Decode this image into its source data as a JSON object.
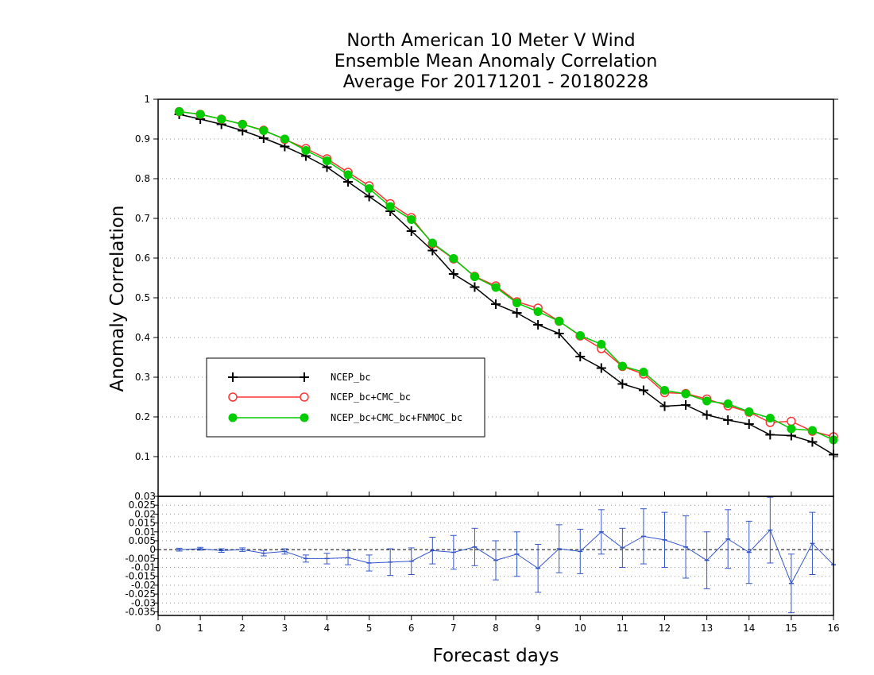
{
  "chart_data": [
    {
      "type": "line",
      "title_lines": [
        "North American 10 Meter V Wind",
        "Ensemble Mean Anomaly Correlation",
        "Average For 20171201 - 20180228"
      ],
      "xlabel": "Forecast days",
      "ylabel": "Anomaly Correlation",
      "xlim": [
        0,
        16
      ],
      "ylim": [
        0,
        1
      ],
      "x_ticks": [
        "0",
        "1",
        "2",
        "3",
        "4",
        "5",
        "6",
        "7",
        "8",
        "9",
        "10",
        "11",
        "12",
        "13",
        "14",
        "15",
        "16"
      ],
      "y_ticks": [
        "0.1",
        "0.2",
        "0.3",
        "0.4",
        "0.5",
        "0.6",
        "0.7",
        "0.8",
        "0.9",
        "1"
      ],
      "grid": "dotted horizontal",
      "legend_position": "lower-left",
      "x": [
        0.5,
        1,
        1.5,
        2,
        2.5,
        3,
        3.5,
        4,
        4.5,
        5,
        5.5,
        6,
        6.5,
        7,
        7.5,
        8,
        8.5,
        9,
        9.5,
        10,
        10.5,
        11,
        11.5,
        12,
        12.5,
        13,
        13.5,
        14,
        14.5,
        15,
        15.5,
        16
      ],
      "series": [
        {
          "name": "NCEP_bc",
          "color": "#000000",
          "marker": "plus",
          "values": [
            0.962,
            0.95,
            0.937,
            0.921,
            0.902,
            0.881,
            0.857,
            0.829,
            0.792,
            0.755,
            0.718,
            0.668,
            0.619,
            0.56,
            0.527,
            0.484,
            0.462,
            0.432,
            0.41,
            0.352,
            0.323,
            0.283,
            0.267,
            0.227,
            0.23,
            0.205,
            0.192,
            0.182,
            0.155,
            0.153,
            0.137,
            0.105
          ]
        },
        {
          "name": "NCEP_bc+CMC_bc",
          "color": "#ff3333",
          "marker": "open-circle",
          "values": [
            0.969,
            0.962,
            0.95,
            0.937,
            0.922,
            0.899,
            0.876,
            0.85,
            0.816,
            0.782,
            0.737,
            0.702,
            0.636,
            0.598,
            0.554,
            0.53,
            0.49,
            0.474,
            0.441,
            0.404,
            0.372,
            0.327,
            0.308,
            0.261,
            0.259,
            0.245,
            0.228,
            0.212,
            0.186,
            0.189,
            0.164,
            0.15
          ]
        },
        {
          "name": "NCEP_bc+CMC_bc+FNMOC_bc",
          "color": "#00cc00",
          "marker": "filled-circle",
          "values": [
            0.969,
            0.962,
            0.95,
            0.937,
            0.921,
            0.9,
            0.871,
            0.845,
            0.81,
            0.775,
            0.73,
            0.697,
            0.638,
            0.599,
            0.553,
            0.526,
            0.487,
            0.465,
            0.441,
            0.405,
            0.383,
            0.328,
            0.313,
            0.267,
            0.258,
            0.24,
            0.233,
            0.213,
            0.197,
            0.17,
            0.166,
            0.142
          ]
        }
      ]
    },
    {
      "type": "line",
      "xlim": [
        0,
        16
      ],
      "ylim": [
        -0.037,
        0.03
      ],
      "y_ticks": [
        "0.03",
        "0.025",
        "0.02",
        "0.015",
        "0.01",
        "0.005",
        "0",
        "-0.005",
        "-0.01",
        "-0.015",
        "-0.02",
        "-0.025",
        "-0.03",
        "-0.035"
      ],
      "grid": "dotted horizontal",
      "zero_line": "dashed",
      "x": [
        0.5,
        1,
        1.5,
        2,
        2.5,
        3,
        3.5,
        4,
        4.5,
        5,
        5.5,
        6,
        6.5,
        7,
        7.5,
        8,
        8.5,
        9,
        9.5,
        10,
        10.5,
        11,
        11.5,
        12,
        12.5,
        13,
        13.5,
        14,
        14.5,
        15,
        15.5,
        16
      ],
      "series": [
        {
          "color": "#3355cc",
          "values": [
            0.0,
            0.0005,
            -0.0005,
            0.0,
            -0.002,
            -0.001,
            -0.005,
            -0.005,
            -0.0045,
            -0.0075,
            -0.007,
            -0.0065,
            -0.0005,
            -0.0015,
            0.0015,
            -0.006,
            -0.0025,
            -0.0105,
            0.0005,
            -0.001,
            0.01,
            0.001,
            0.0075,
            0.0055,
            0.0015,
            -0.006,
            0.006,
            -0.0015,
            0.011,
            -0.019,
            0.0035,
            -0.0085
          ],
          "error": [
            0.0008,
            0.0008,
            0.001,
            0.001,
            0.0015,
            0.0015,
            0.002,
            0.003,
            0.004,
            0.0045,
            0.0075,
            0.0075,
            0.0075,
            0.0095,
            0.0105,
            0.011,
            0.0125,
            0.0135,
            0.0135,
            0.0125,
            0.0125,
            0.011,
            0.0155,
            0.0155,
            0.0175,
            0.016,
            0.0165,
            0.0175,
            0.0185,
            0.0165,
            0.0175,
            0.0
          ]
        }
      ]
    }
  ]
}
